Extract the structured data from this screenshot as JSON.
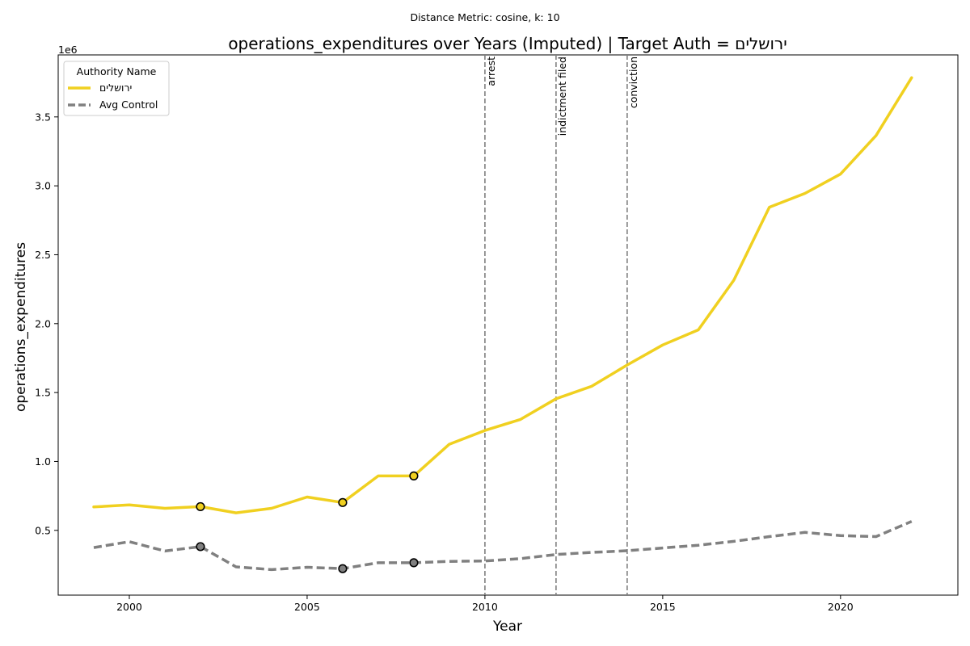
{
  "chart_data": {
    "type": "line",
    "suptitle": "Distance Metric: cosine, k: 10",
    "title": "operations_expenditures over Years (Imputed) | Target Auth = ירושלים",
    "xlabel": "Year",
    "ylabel": "operations_expenditures",
    "y_offset_label": "1e6",
    "xlim": [
      1998,
      2023.3
    ],
    "ylim": [
      0.03,
      3.95
    ],
    "x_ticks": [
      2000,
      2005,
      2010,
      2015,
      2020
    ],
    "x_tick_labels": [
      "2000",
      "2005",
      "2010",
      "2015",
      "2020"
    ],
    "y_ticks": [
      0.5,
      1.0,
      1.5,
      2.0,
      2.5,
      3.0,
      3.5
    ],
    "y_tick_labels": [
      "0.5",
      "1.0",
      "1.5",
      "2.0",
      "2.5",
      "3.0",
      "3.5"
    ],
    "grid": false,
    "legend": {
      "title": "Authority Name",
      "placement": "top-left"
    },
    "x": [
      1999,
      2000,
      2001,
      2002,
      2003,
      2004,
      2005,
      2006,
      2007,
      2008,
      2009,
      2010,
      2011,
      2012,
      2013,
      2014,
      2015,
      2016,
      2017,
      2018,
      2019,
      2020,
      2021,
      2022
    ],
    "series": [
      {
        "name": "ירושלים",
        "color": "#f0d020",
        "style": "solid",
        "values": [
          0.67,
          0.685,
          0.66,
          0.672,
          0.627,
          0.66,
          0.742,
          0.702,
          0.895,
          0.895,
          1.125,
          1.225,
          1.305,
          1.455,
          1.545,
          1.7,
          1.845,
          1.955,
          2.315,
          2.845,
          2.945,
          3.085,
          3.365,
          3.785
        ],
        "imputed_x": [
          2002,
          2006,
          2008
        ]
      },
      {
        "name": "Avg Control",
        "color": "#808080",
        "style": "dashed",
        "values": [
          0.375,
          0.418,
          0.35,
          0.382,
          0.235,
          0.215,
          0.232,
          0.222,
          0.265,
          0.265,
          0.275,
          0.278,
          0.295,
          0.325,
          0.34,
          0.352,
          0.372,
          0.392,
          0.42,
          0.455,
          0.485,
          0.462,
          0.455,
          0.565
        ],
        "imputed_x": [
          2002,
          2006,
          2008
        ]
      }
    ],
    "events": [
      {
        "x": 2010,
        "label": "arrest"
      },
      {
        "x": 2012,
        "label": "indictment filed"
      },
      {
        "x": 2014,
        "label": "conviction"
      }
    ]
  }
}
